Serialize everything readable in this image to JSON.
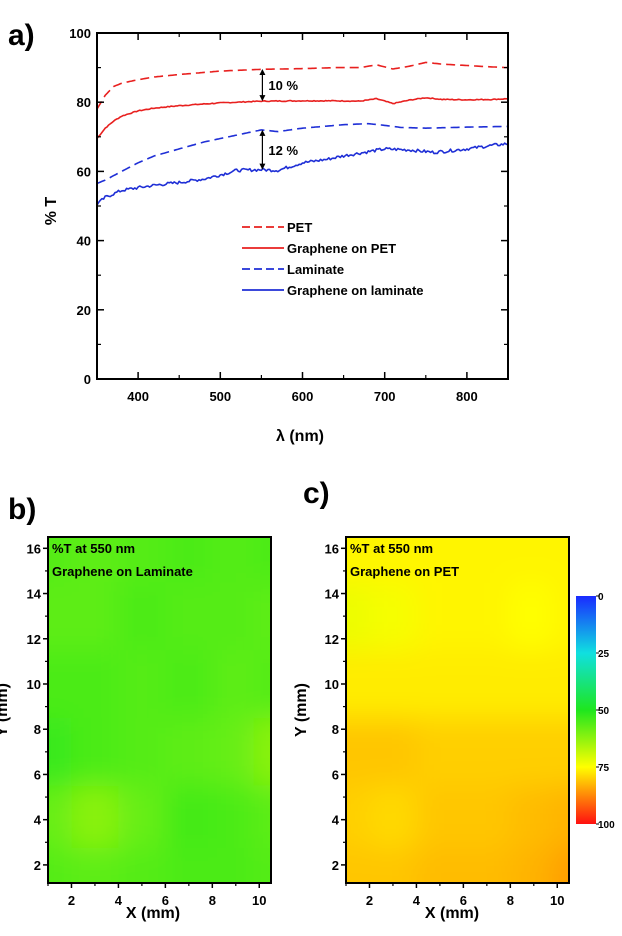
{
  "panels": {
    "a": "a)",
    "b": "b)",
    "c": "c)"
  },
  "chart_data": [
    {
      "type": "line",
      "xlabel": "λ (nm)",
      "ylabel": "% T",
      "xlim": [
        350,
        850
      ],
      "ylim": [
        0,
        100
      ],
      "xticks": [
        400,
        500,
        600,
        700,
        800
      ],
      "yticks": [
        0,
        20,
        40,
        60,
        80,
        100
      ],
      "legend_position": "center-right",
      "series": [
        {
          "name": "PET",
          "color": "#e8201f",
          "dash": true,
          "x": [
            350,
            360,
            370,
            380,
            400,
            420,
            450,
            500,
            550,
            600,
            640,
            670,
            690,
            710,
            730,
            750,
            770,
            800,
            830,
            850
          ],
          "y": [
            78,
            82,
            84.5,
            85.5,
            86.5,
            87.3,
            88,
            89,
            89.5,
            89.7,
            90,
            90,
            90.8,
            89.6,
            90.4,
            91.5,
            91,
            90.6,
            90.2,
            90
          ]
        },
        {
          "name": "Graphene on PET",
          "color": "#e8201f",
          "dash": false,
          "x": [
            350,
            360,
            370,
            380,
            400,
            420,
            450,
            500,
            550,
            600,
            640,
            670,
            690,
            710,
            730,
            750,
            770,
            800,
            830,
            850
          ],
          "y": [
            69.5,
            72.5,
            74.5,
            76,
            77.5,
            78.3,
            79,
            79.8,
            80.3,
            80.4,
            80.4,
            80.3,
            81,
            79.6,
            80.6,
            81.3,
            80.8,
            80.7,
            80.8,
            81
          ]
        },
        {
          "name": "Laminate",
          "color": "#1f2fd6",
          "dash": true,
          "x": [
            350,
            360,
            380,
            400,
            420,
            450,
            480,
            500,
            520,
            550,
            570,
            600,
            650,
            680,
            700,
            720,
            750,
            800,
            850
          ],
          "y": [
            56.5,
            57.5,
            60,
            62.5,
            64.5,
            66.5,
            68.5,
            69.5,
            70.5,
            72,
            71.5,
            72.5,
            73.5,
            73.8,
            73.3,
            72.7,
            72.5,
            72.8,
            73
          ]
        },
        {
          "name": "Graphene on laminate",
          "color": "#1f2fd6",
          "dash": false,
          "x": [
            350,
            360,
            380,
            400,
            420,
            450,
            480,
            500,
            520,
            550,
            570,
            600,
            630,
            650,
            670,
            700,
            730,
            760,
            800,
            830,
            850
          ],
          "y": [
            50.5,
            52.5,
            54.5,
            55.3,
            56,
            56.8,
            57.8,
            59,
            60.3,
            60.5,
            60.3,
            62.5,
            63.5,
            64.5,
            65.3,
            66.5,
            66.2,
            65.5,
            66.5,
            67.5,
            68
          ]
        }
      ],
      "annotations": [
        {
          "text": "10 %",
          "x": 550,
          "y1": 80.3,
          "y2": 89.6
        },
        {
          "text": "12 %",
          "x": 550,
          "y1": 60.5,
          "y2": 72
        }
      ]
    },
    {
      "type": "heatmap",
      "title_lines": [
        "%T at 550 nm",
        "Graphene on Laminate"
      ],
      "xlabel": "X (mm)",
      "ylabel": "Y (mm)",
      "xlim": [
        1,
        10.5
      ],
      "ylim": [
        1.2,
        16.5
      ],
      "xticks": [
        2,
        4,
        6,
        8,
        10
      ],
      "yticks": [
        2,
        4,
        6,
        8,
        10,
        12,
        14,
        16
      ],
      "value_grid_x": [
        1,
        3,
        5,
        7,
        9,
        10.5
      ],
      "value_grid_y": [
        16,
        13,
        10,
        7,
        4,
        1.5
      ],
      "values": [
        [
          56,
          57,
          56,
          55,
          56,
          55
        ],
        [
          57,
          57,
          55,
          56,
          56,
          57
        ],
        [
          55,
          55,
          56,
          55,
          57,
          56
        ],
        [
          53,
          55,
          56,
          57,
          58,
          62
        ],
        [
          58,
          62,
          58,
          54,
          55,
          57
        ],
        [
          56,
          57,
          56,
          55,
          55,
          56
        ]
      ]
    },
    {
      "type": "heatmap",
      "title_lines": [
        "%T at 550 nm",
        "Graphene on PET"
      ],
      "xlabel": "X (mm)",
      "ylabel": "Y (mm)",
      "xlim": [
        1,
        10.5
      ],
      "ylim": [
        1.2,
        16.5
      ],
      "xticks": [
        2,
        4,
        6,
        8,
        10
      ],
      "yticks": [
        2,
        4,
        6,
        8,
        10,
        12,
        14,
        16
      ],
      "value_grid_x": [
        1,
        3,
        5,
        7,
        9,
        10.5
      ],
      "value_grid_y": [
        16,
        13,
        10,
        7,
        4,
        1.5
      ],
      "values": [
        [
          76,
          76,
          76,
          76,
          76,
          76
        ],
        [
          73,
          74,
          76,
          76,
          75,
          76
        ],
        [
          77,
          77,
          77,
          77,
          77,
          77
        ],
        [
          81,
          81,
          80,
          80,
          80,
          80
        ],
        [
          80,
          79,
          81,
          81,
          82,
          83
        ],
        [
          81,
          81,
          82,
          82,
          83,
          85
        ]
      ],
      "colorbar": {
        "ticks": [
          0,
          25,
          50,
          75,
          100
        ],
        "range": [
          0,
          100
        ]
      }
    }
  ]
}
